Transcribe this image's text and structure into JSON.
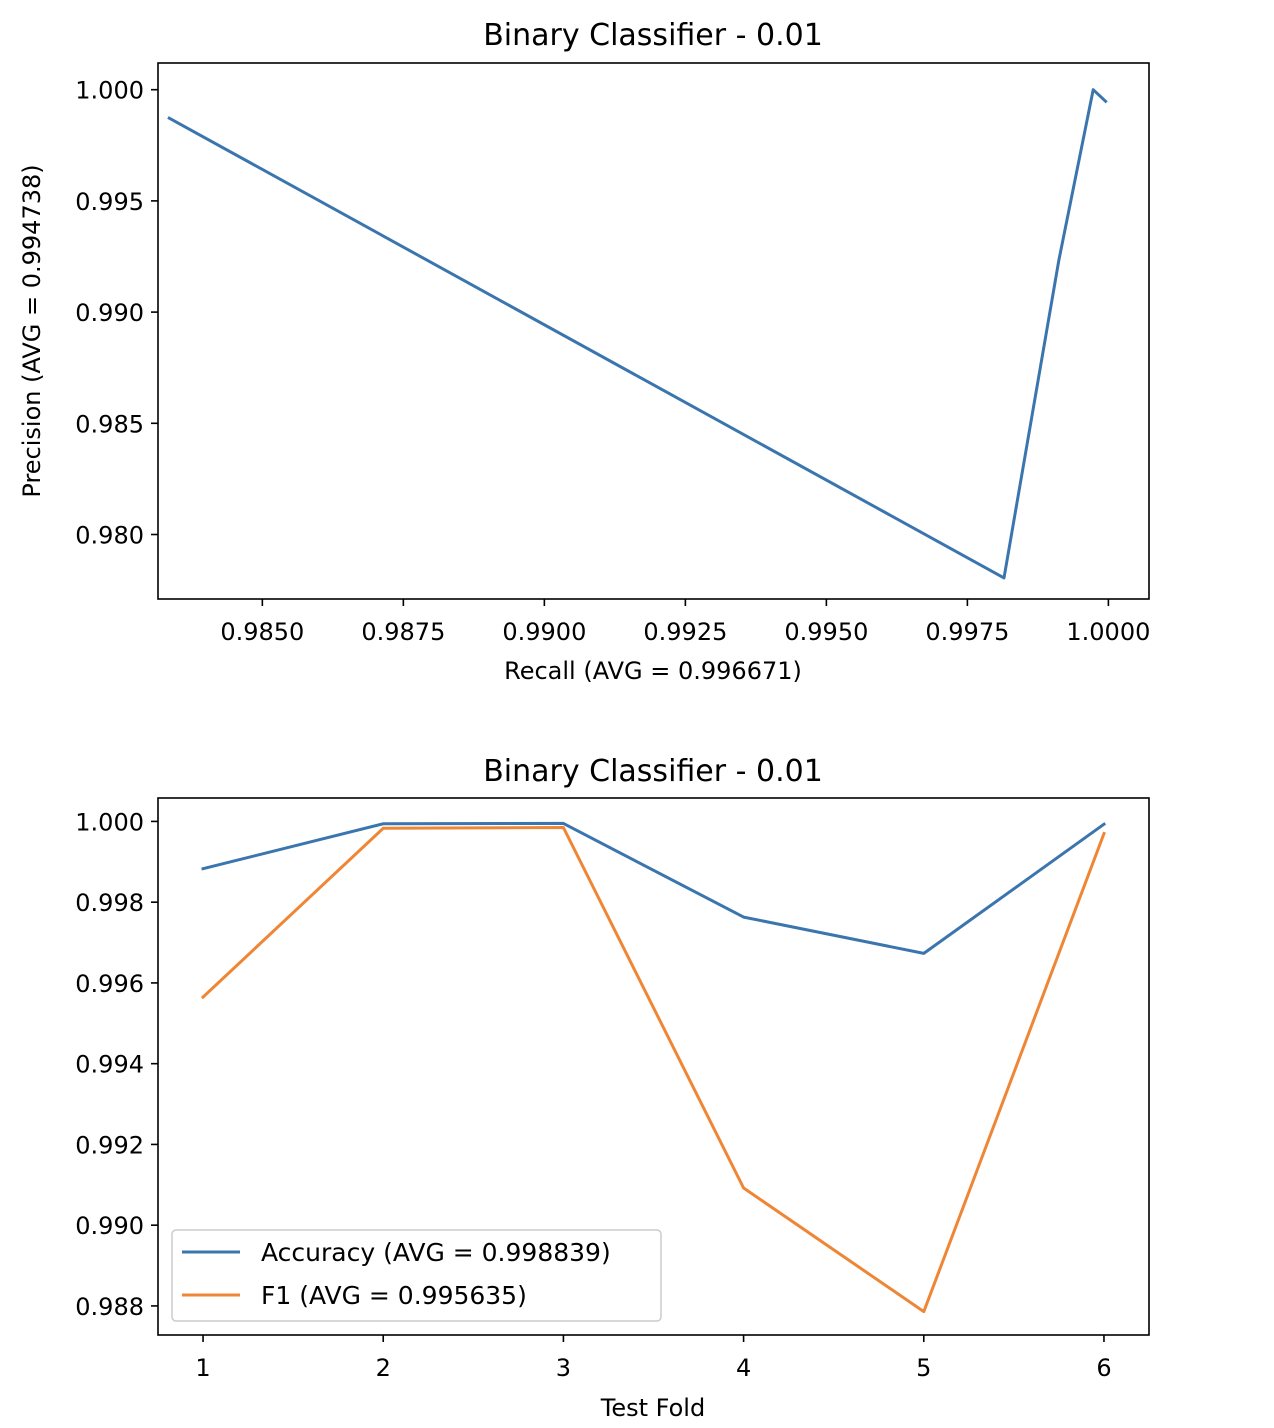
{
  "chart_data": [
    {
      "type": "line",
      "title": "Binary Classifier - 0.01",
      "xlabel": "Recall (AVG = 0.996671)",
      "ylabel": "Precision (AVG = 0.994738)",
      "xlim": [
        0.98315,
        1.00072
      ],
      "ylim": [
        0.9771,
        1.0012
      ],
      "xticks": [
        "0.9850",
        "0.9875",
        "0.9900",
        "0.9925",
        "0.9950",
        "0.9975",
        "1.0000"
      ],
      "yticks": [
        "1.000",
        "0.995",
        "0.990",
        "0.985",
        "0.980"
      ],
      "grid": false,
      "color": "#3a75ae",
      "series": [
        {
          "x": [
            0.98335,
            0.99815,
            0.99912,
            0.99973,
            0.99995
          ],
          "y": [
            0.99872,
            0.97805,
            0.99232,
            1.0,
            0.99948
          ]
        }
      ]
    },
    {
      "type": "line",
      "title": "Binary Classifier - 0.01",
      "xlabel": "Test Fold",
      "ylabel": "",
      "xlim": [
        0.75,
        6.25
      ],
      "ylim": [
        0.98728,
        1.00058
      ],
      "categories": [
        1,
        2,
        3,
        4,
        5,
        6
      ],
      "xticks": [
        "1",
        "2",
        "3",
        "4",
        "5",
        "6"
      ],
      "yticks": [
        "1.000",
        "0.998",
        "0.996",
        "0.994",
        "0.992",
        "0.990",
        "0.988"
      ],
      "grid": false,
      "legend": "lower-left",
      "series": [
        {
          "name": "Accuracy (AVG = 0.998839)",
          "color": "#3a75ae",
          "values": [
            0.99883,
            0.99994,
            0.99995,
            0.99763,
            0.99673,
            0.99993
          ]
        },
        {
          "name": "F1 (AVG = 0.995635)",
          "color": "#ef8636",
          "values": [
            0.99565,
            0.99983,
            0.99985,
            0.99092,
            0.98786,
            0.9997
          ]
        }
      ]
    }
  ]
}
